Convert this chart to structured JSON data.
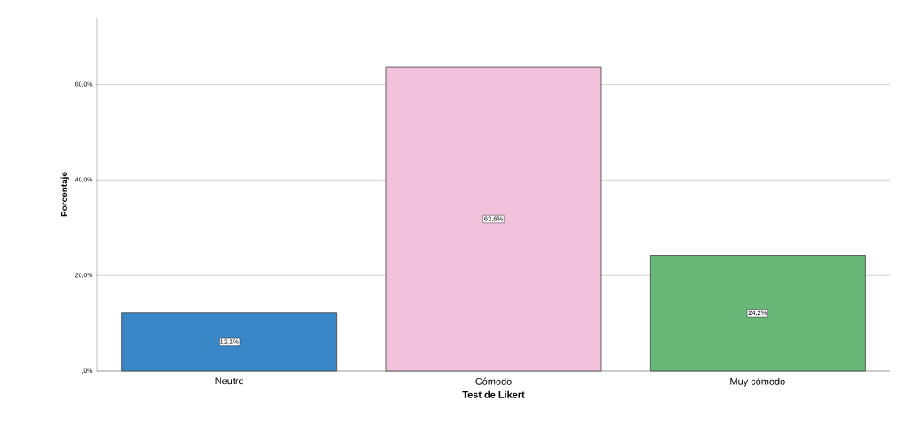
{
  "chart_data": {
    "type": "bar",
    "xlabel": "Test de Likert",
    "ylabel": "Porcentaje",
    "categories": [
      "Neutro",
      "Cómodo",
      "Muy cómodo"
    ],
    "values": [
      12.1,
      63.6,
      24.2
    ],
    "colors": [
      "#3a87c8",
      "#f2c1dc",
      "#6ab877"
    ],
    "value_labels": [
      "12,1%",
      "63,6%",
      "24,2%"
    ],
    "ylim": [
      0,
      74
    ],
    "yticks": [
      {
        "value": 0,
        "label": ",0%"
      },
      {
        "value": 20,
        "label": "20,0%"
      },
      {
        "value": 40,
        "label": "40,0%"
      },
      {
        "value": 60,
        "label": "60,0%"
      }
    ],
    "grid": "y"
  }
}
